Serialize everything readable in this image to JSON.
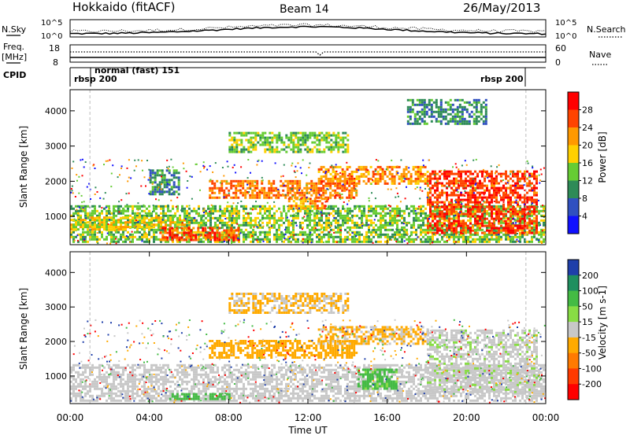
{
  "header": {
    "station": "Hokkaido (fitACF)",
    "beam": "Beam 14",
    "date": "26/May/2013"
  },
  "summary_panels": {
    "nsky_label": "N.Sky",
    "nsearch_label": "N.Search",
    "nsky_ticks": [
      "10^5",
      "10^0"
    ],
    "nsky_right_ticks": [
      "10^5",
      "10^0"
    ],
    "freq_label": "Freq.",
    "freq_unit": "[MHz]",
    "freq_ticks": [
      "18",
      "8"
    ],
    "nave_label": "Nave",
    "nave_ticks": [
      "60",
      "0"
    ],
    "cpid_label": "CPID",
    "cpid_segments": [
      {
        "label": "rbsp 200",
        "start_hour": 0.0,
        "end_hour": 1.0
      },
      {
        "label": "normal (fast) 151",
        "start_hour": 1.0,
        "end_hour": 23.0
      },
      {
        "label": "rbsp 200",
        "start_hour": 23.0,
        "end_hour": 24.0
      }
    ]
  },
  "chart_data": [
    {
      "type": "heatmap",
      "name": "power",
      "ylabel": "Slant Range [km]",
      "ylim": [
        200,
        4600
      ],
      "xlim": [
        0,
        24
      ],
      "yticks": [
        "1000",
        "2000",
        "3000",
        "4000"
      ],
      "colorbar_label": "Power [dB]",
      "colorbar_ticks": [
        "4",
        "8",
        "12",
        "16",
        "20",
        "24",
        "28"
      ],
      "colorbar_colors": [
        "#1010ff",
        "#3050c0",
        "#2e8b57",
        "#66cc33",
        "#ffd000",
        "#ff9900",
        "#ff4400",
        "#ff0000"
      ],
      "regions": [
        {
          "t0": 0.0,
          "t1": 24.0,
          "r0": 250,
          "r1": 1300,
          "value": 14
        },
        {
          "t0": 0.0,
          "t1": 6.0,
          "r0": 600,
          "r1": 1000,
          "value": 18
        },
        {
          "t0": 4.5,
          "t1": 8.5,
          "r0": 300,
          "r1": 650,
          "value": 26
        },
        {
          "t0": 7.0,
          "t1": 14.5,
          "r0": 1500,
          "r1": 2000,
          "value": 24
        },
        {
          "t0": 11.0,
          "t1": 13.0,
          "r0": 1200,
          "r1": 1500,
          "value": 22
        },
        {
          "t0": 12.5,
          "t1": 18.0,
          "r0": 1900,
          "r1": 2400,
          "value": 22
        },
        {
          "t0": 18.0,
          "t1": 23.5,
          "r0": 500,
          "r1": 2300,
          "value": 27
        },
        {
          "t0": 4.0,
          "t1": 5.5,
          "r0": 1600,
          "r1": 2300,
          "value": 10
        },
        {
          "t0": 8.0,
          "t1": 14.0,
          "r0": 2800,
          "r1": 3400,
          "value": 14
        },
        {
          "t0": 17.0,
          "t1": 21.0,
          "r0": 3600,
          "r1": 4300,
          "value": 10
        }
      ]
    },
    {
      "type": "heatmap",
      "name": "velocity",
      "ylabel": "Slant Range [km]",
      "ylim": [
        200,
        4600
      ],
      "xlim": [
        0,
        24
      ],
      "yticks": [
        "1000",
        "2000",
        "3000",
        "4000"
      ],
      "colorbar_label": "Velocity [m s-1]",
      "colorbar_ticks": [
        "200",
        "100",
        "50",
        "15",
        "-15",
        "-50",
        "-100",
        "-200"
      ],
      "colorbar_colors": [
        "#1f3faa",
        "#1f8f5f",
        "#44bb44",
        "#88dd44",
        "#c8c8c8",
        "#ffaa00",
        "#ff7a00",
        "#ff3a00",
        "#ff0000"
      ],
      "regions": [
        {
          "t0": 0.0,
          "t1": 24.0,
          "r0": 250,
          "r1": 1300,
          "value": 0
        },
        {
          "t0": 7.0,
          "t1": 14.5,
          "r0": 1500,
          "r1": 2000,
          "value": -30
        },
        {
          "t0": 12.5,
          "t1": 18.0,
          "r0": 1900,
          "r1": 2400,
          "value": -20
        },
        {
          "t0": 14.5,
          "t1": 16.5,
          "r0": 600,
          "r1": 1200,
          "value": 60
        },
        {
          "t0": 18.0,
          "t1": 23.5,
          "r0": 500,
          "r1": 2300,
          "value": 5
        },
        {
          "t0": 5.0,
          "t1": 8.0,
          "r0": 300,
          "r1": 500,
          "value": 70
        },
        {
          "t0": 8.0,
          "t1": 14.0,
          "r0": 2800,
          "r1": 3400,
          "value": -20
        }
      ]
    }
  ],
  "x_axis": {
    "label": "Time UT",
    "ticks": [
      "00:00",
      "04:00",
      "08:00",
      "12:00",
      "16:00",
      "20:00",
      "00:00"
    ],
    "tick_hours": [
      0,
      4,
      8,
      12,
      16,
      20,
      24
    ]
  }
}
